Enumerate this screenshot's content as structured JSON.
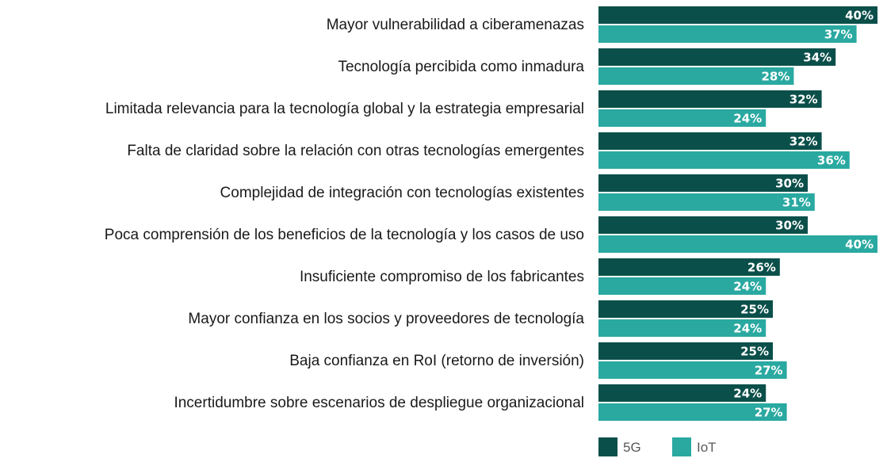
{
  "chart_data": {
    "type": "bar",
    "orientation": "horizontal",
    "categories": [
      "Mayor vulnerabilidad a ciberamenazas",
      "Tecnología percibida como inmadura",
      "Limitada relevancia para la tecnología global y la estrategia empresarial",
      "Falta de claridad sobre la relación con otras tecnologías emergentes",
      "Complejidad de integración con tecnologías existentes",
      "Poca comprensión de los beneficios de la tecnología y los casos de uso",
      "Insuficiente compromiso de los fabricantes",
      "Mayor confianza en los socios y proveedores de tecnología",
      "Baja confianza en RoI (retorno de inversión)",
      "Incertidumbre sobre escenarios de despliegue organizacional"
    ],
    "series": [
      {
        "name": "5G",
        "color": "#0b4f4a",
        "values": [
          40,
          34,
          32,
          32,
          30,
          30,
          26,
          25,
          25,
          24
        ],
        "labels": [
          "40%",
          "34%",
          "32%",
          "32%",
          "30%",
          "30%",
          "26%",
          "25%",
          "25%",
          "24%"
        ]
      },
      {
        "name": "IoT",
        "color": "#2aa9a1",
        "values": [
          37,
          28,
          24,
          36,
          31,
          40,
          24,
          24,
          27,
          27
        ],
        "labels": [
          "37%",
          "28%",
          "24%",
          "36%",
          "31%",
          "40%",
          "24%",
          "24%",
          "27%",
          "27%"
        ]
      }
    ],
    "value_unit": "%",
    "xlim": [
      0,
      40
    ],
    "legend_position": "bottom",
    "grid": false,
    "title": "",
    "xlabel": "",
    "ylabel": ""
  }
}
